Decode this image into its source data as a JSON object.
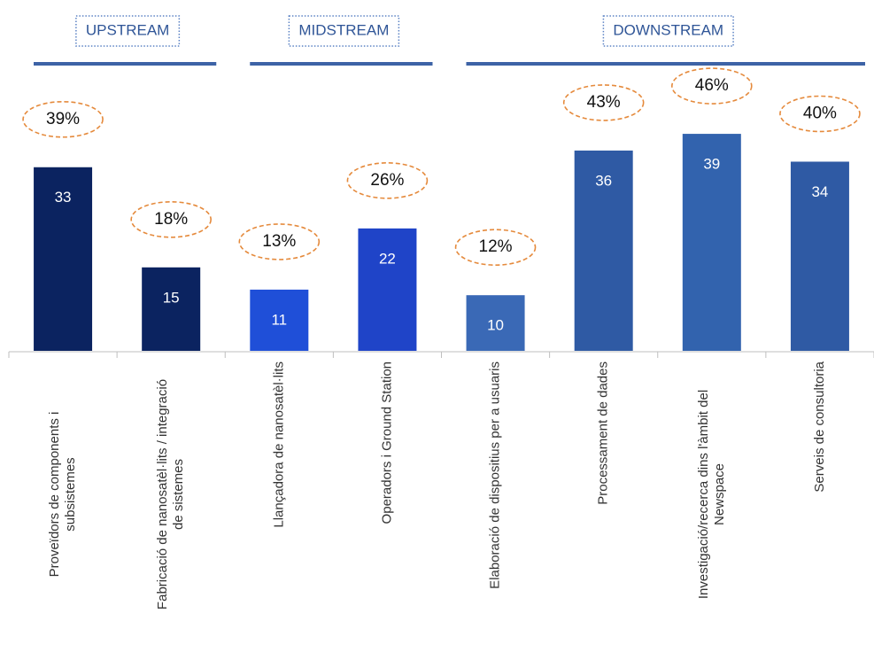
{
  "chart_data": {
    "type": "bar",
    "categories": [
      [
        "Proveïdors de components i",
        "subsistemes"
      ],
      [
        "Fabricació de nanosatèl·lits / integració",
        "de sistemes"
      ],
      [
        "Llançadora de nanosatèl·lits"
      ],
      [
        "Operadors i Ground Station"
      ],
      [
        "Elaboració de dispositius per a usuaris"
      ],
      [
        "Processament de dades"
      ],
      [
        "Investigació/recerca dins l'àmbit del",
        "Newspace"
      ],
      [
        "Serveis de consultoria"
      ]
    ],
    "values": [
      33,
      15,
      11,
      22,
      10,
      36,
      39,
      34
    ],
    "colors": [
      "#0b2360",
      "#0b2360",
      "#1f4fd8",
      "#1f44c8",
      "#3a69b6",
      "#2f5aa4",
      "#3263ae",
      "#2f5aa4"
    ],
    "shares": {
      "values": [
        39,
        18,
        13,
        26,
        12,
        43,
        46,
        40
      ],
      "value_labels": [
        "39%",
        "18%",
        "13%",
        "26%",
        "12%",
        "43%",
        "46%",
        "40%"
      ],
      "color": "#e58a3c"
    },
    "groups": [
      {
        "label": "UPSTREAM",
        "start": 0,
        "end": 1
      },
      {
        "label": "MIDSTREAM",
        "start": 2,
        "end": 3
      },
      {
        "label": "DOWNSTREAM",
        "start": 4,
        "end": 7
      }
    ]
  }
}
